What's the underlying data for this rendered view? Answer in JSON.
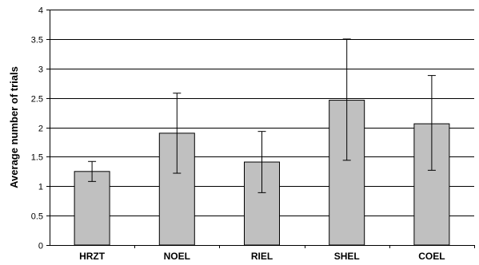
{
  "chart_data": {
    "type": "bar",
    "title": "",
    "xlabel": "",
    "ylabel": "Average number of trials",
    "categories": [
      "HRZT",
      "NOEL",
      "RIEL",
      "SHEL",
      "COEL"
    ],
    "values": [
      1.25,
      1.9,
      1.41,
      2.46,
      2.06
    ],
    "error_low": [
      1.08,
      1.22,
      0.89,
      1.44,
      1.27
    ],
    "error_high": [
      1.42,
      2.58,
      1.93,
      3.5,
      2.88
    ],
    "ylim": [
      0,
      4
    ],
    "y_ticks": [
      "0",
      "0.5",
      "1",
      "1.5",
      "2",
      "2.5",
      "3",
      "3.5",
      "4"
    ],
    "y_tick_values": [
      0,
      0.5,
      1,
      1.5,
      2,
      2.5,
      3,
      3.5,
      4
    ],
    "grid": true,
    "bar_color": "#c0c0c0",
    "bar_stroke": "#000000",
    "grid_color": "#000000"
  }
}
